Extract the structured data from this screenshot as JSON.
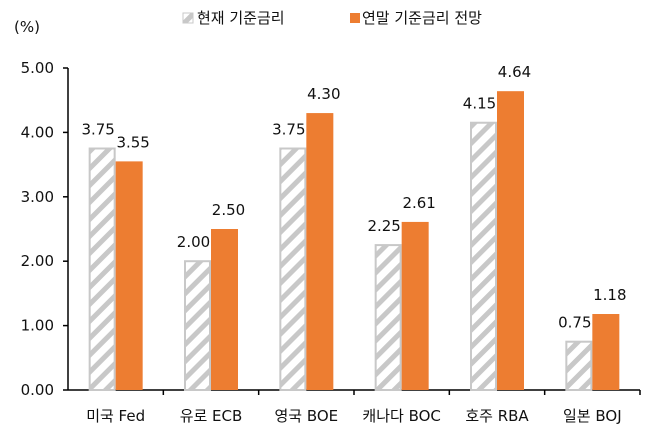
{
  "chart_data": {
    "type": "bar",
    "ylabel": "(%)",
    "ylim": [
      0,
      5
    ],
    "yticks": [
      "0.00",
      "1.00",
      "2.00",
      "3.00",
      "4.00",
      "5.00"
    ],
    "grid": false,
    "legend_position": "top",
    "categories": [
      "미국 Fed",
      "유로 ECB",
      "영국 BOE",
      "캐나다 BOC",
      "호주 RBA",
      "일본 BOJ"
    ],
    "series": [
      {
        "name": "현재 기준금리",
        "values": [
          3.75,
          2.0,
          3.75,
          2.25,
          4.15,
          0.75
        ],
        "labels": [
          "3.75",
          "2.00",
          "3.75",
          "2.25",
          "4.15",
          "0.75"
        ],
        "color": "#c8c8c8",
        "pattern": "diagonal-hatch"
      },
      {
        "name": "연말 기준금리 전망",
        "values": [
          3.55,
          2.5,
          4.3,
          2.61,
          4.64,
          1.18
        ],
        "labels": [
          "3.55",
          "2.50",
          "4.30",
          "2.61",
          "4.64",
          "1.18"
        ],
        "color": "#ED7D31"
      }
    ]
  }
}
